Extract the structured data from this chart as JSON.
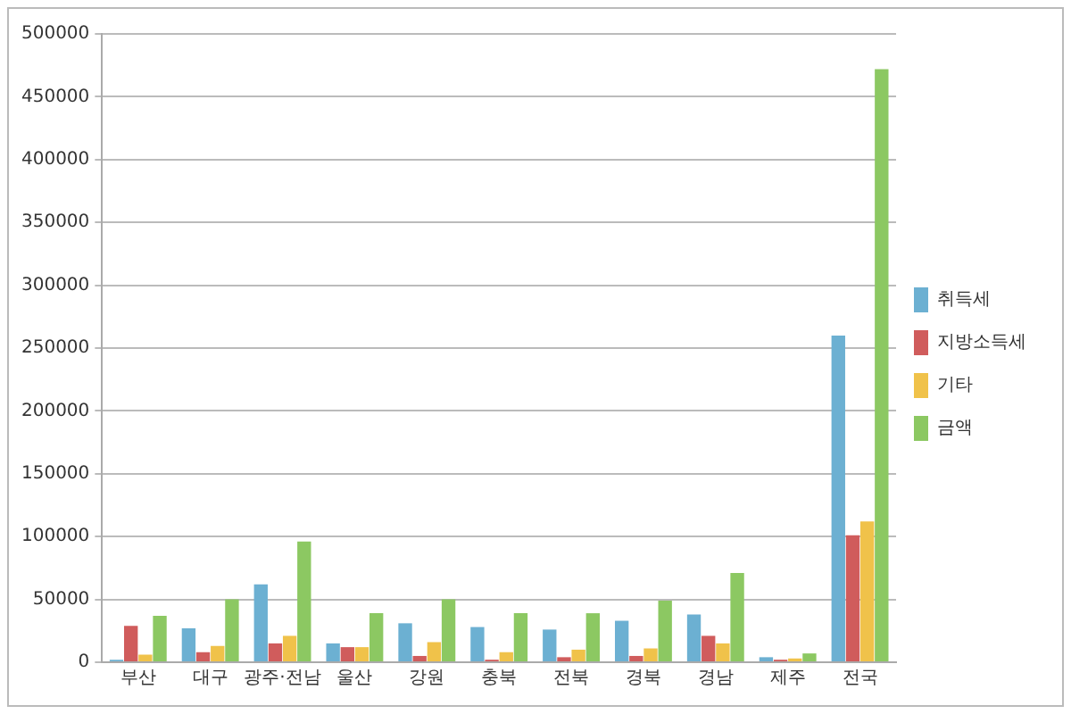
{
  "chart_data": {
    "type": "bar",
    "categories": [
      "부산",
      "대구",
      "광주·전남",
      "울산",
      "강원",
      "충북",
      "전북",
      "경북",
      "경남",
      "제주",
      "전국"
    ],
    "series": [
      {
        "name": "취득세",
        "color": "#6cb0d2",
        "values": [
          2000,
          27000,
          62000,
          15000,
          31000,
          28000,
          26000,
          33000,
          38000,
          4000,
          260000
        ]
      },
      {
        "name": "지방소득세",
        "color": "#d05c5c",
        "values": [
          29000,
          8000,
          15000,
          12000,
          5000,
          2000,
          4000,
          5000,
          21000,
          2000,
          101000
        ]
      },
      {
        "name": "기타",
        "color": "#f0c24a",
        "values": [
          6000,
          13000,
          21000,
          12000,
          16000,
          8000,
          10000,
          11000,
          15000,
          3000,
          112000
        ]
      },
      {
        "name": "금액",
        "color": "#8cc862",
        "values": [
          37000,
          50000,
          96000,
          39000,
          50000,
          39000,
          39000,
          49000,
          71000,
          7000,
          472000
        ]
      }
    ],
    "ylim": [
      0,
      500000
    ],
    "yticks": [
      0,
      50000,
      100000,
      150000,
      200000,
      250000,
      300000,
      350000,
      400000,
      450000,
      500000
    ],
    "grid": "y",
    "legend": "right"
  }
}
